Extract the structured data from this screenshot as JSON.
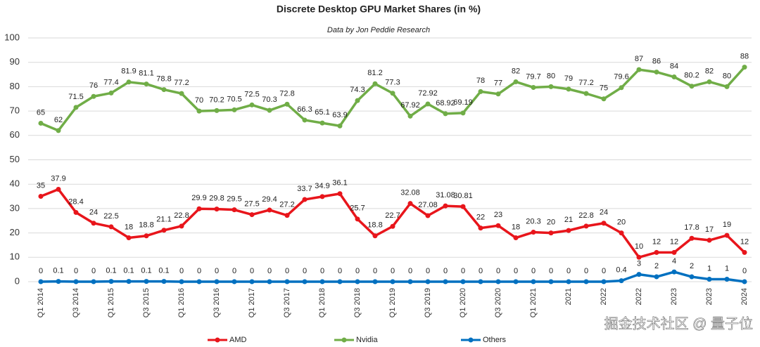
{
  "chart_data": {
    "type": "line",
    "title": "Discrete Desktop GPU Market Shares (in %)",
    "subtitle": "Data by Jon Peddie Research",
    "watermark": "掘金技术社区 @ 量子位",
    "categories": [
      "Q1 2014",
      null,
      "Q3 2014",
      null,
      "Q1 2015",
      null,
      "Q3 2015",
      null,
      "Q1 2016",
      null,
      "Q3 2016",
      null,
      "Q1 2017",
      null,
      "Q3 2017",
      null,
      "Q1 2018",
      null,
      "Q3 2018",
      null,
      "Q1 2019",
      null,
      "Q3 2019",
      null,
      "Q1 2020",
      null,
      "Q3 2020",
      null,
      "Q1 2021",
      null,
      "2021",
      null,
      "2022",
      null,
      "2022",
      null,
      "2023",
      null,
      "2023",
      null,
      "2024"
    ],
    "series": [
      {
        "name": "AMD",
        "color": "#e8151b",
        "values": [
          35,
          37.9,
          28.4,
          24,
          22.5,
          18,
          18.8,
          21.1,
          22.8,
          29.9,
          29.8,
          29.5,
          27.5,
          29.4,
          27.2,
          33.7,
          34.9,
          36.1,
          25.7,
          18.8,
          22.7,
          32.08,
          27.08,
          31.08,
          30.81,
          22,
          23,
          18,
          20.3,
          20,
          21,
          22.8,
          24,
          20,
          10,
          12,
          12,
          17.8,
          17,
          19,
          12
        ]
      },
      {
        "name": "Nvidia",
        "color": "#70ad47",
        "values": [
          65,
          62,
          71.5,
          76,
          77.4,
          81.9,
          81.1,
          78.8,
          77.2,
          70,
          70.2,
          70.5,
          72.5,
          70.3,
          72.8,
          66.3,
          65.1,
          63.9,
          74.3,
          81.2,
          77.3,
          67.92,
          72.92,
          68.92,
          69.19,
          78,
          77,
          82,
          79.7,
          80,
          79,
          77.2,
          75,
          79.6,
          87,
          86,
          84,
          80.2,
          82,
          80,
          88
        ]
      },
      {
        "name": "Others",
        "color": "#0070c0",
        "values": [
          0,
          0.1,
          0,
          0,
          0.1,
          0.1,
          0.1,
          0.1,
          0,
          0,
          0,
          0,
          0,
          0,
          0,
          0,
          0,
          0,
          0,
          0,
          0,
          0,
          0,
          0,
          0,
          0,
          0,
          0,
          0,
          0,
          0,
          0,
          0,
          0.4,
          3,
          2,
          4,
          2,
          1,
          1,
          0
        ]
      }
    ],
    "ylim": [
      0,
      100
    ],
    "yticks": [
      0,
      10,
      20,
      30,
      40,
      50,
      60,
      70,
      80,
      90,
      100
    ],
    "grid": true,
    "legend": "bottom"
  }
}
